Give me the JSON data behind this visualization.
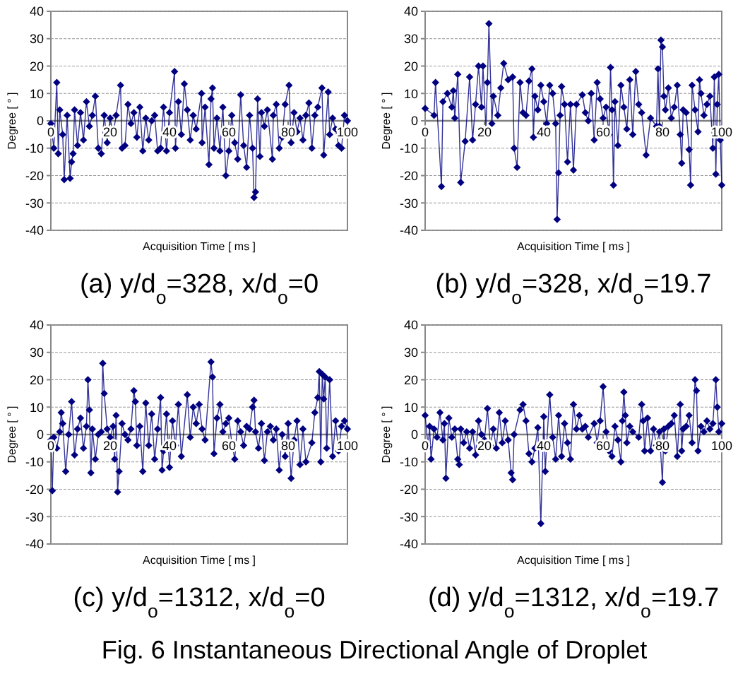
{
  "chart_data": [
    {
      "type": "line",
      "title": "(a) y/d$_{o}$=328, x/d$_{o}$=0",
      "xlabel": "Acquisition Time [ ms ]",
      "ylabel": "Degree [ ° ]",
      "xlim": [
        0,
        100
      ],
      "xticks": [
        0,
        20,
        40,
        60,
        80,
        100
      ],
      "ylim": [
        -40,
        40
      ],
      "yticks": [
        -40,
        -30,
        -20,
        -10,
        0,
        10,
        20,
        30,
        40
      ],
      "grid": "y",
      "marker": "diamond",
      "line_style": "solid",
      "annotations": [
        "Fig. 6 Instantaneous Directional Angle of Droplet"
      ],
      "series": [
        {
          "color": "#000080",
          "x": [
            0,
            1,
            2,
            2.5,
            3,
            4,
            4.5,
            5.5,
            6.5,
            7,
            7.5,
            8,
            9,
            10,
            11,
            12,
            13,
            14,
            15,
            16,
            17,
            18,
            19,
            20,
            21,
            22,
            23.5,
            24,
            25,
            26,
            27,
            28,
            29,
            30,
            31,
            32,
            33,
            34,
            35,
            36,
            37,
            38,
            39,
            40,
            41.7,
            42,
            43,
            44,
            45,
            46,
            47,
            48,
            49,
            50.8,
            51,
            52,
            53.3,
            54,
            54.5,
            55,
            56,
            57,
            58,
            59,
            60,
            61,
            62,
            63,
            64,
            65,
            66,
            67,
            68,
            68.5,
            69,
            69.7,
            70.5,
            71,
            72,
            73,
            74.7,
            75,
            76,
            77,
            78,
            79,
            80.3,
            81,
            82,
            83,
            84,
            85,
            86,
            87,
            88,
            89,
            90,
            91.4,
            92,
            93.5,
            94,
            95,
            96,
            97,
            98,
            99,
            100
          ],
          "values": [
            -1,
            -10,
            14,
            -12,
            4,
            -5,
            -21.5,
            2,
            -21,
            -15,
            -12,
            4,
            -9,
            3,
            -7,
            7,
            -2,
            2,
            9,
            -10,
            -12,
            2,
            -8,
            1,
            -5,
            2,
            13,
            -10,
            -9,
            6,
            -1,
            3,
            -6,
            5,
            -11,
            1,
            -7,
            0,
            2,
            -11,
            -10,
            5,
            -11,
            3,
            18,
            -10,
            7,
            -5,
            13.5,
            4,
            -7,
            2,
            -3,
            10,
            -8,
            5,
            -16,
            8,
            12,
            -10,
            1,
            -11,
            5,
            -20,
            -11,
            2,
            -8,
            -14,
            9.5,
            -9,
            -17,
            2,
            -10,
            -28,
            -26,
            8,
            -13,
            3,
            -2,
            4,
            -14,
            2,
            6,
            -10,
            -6,
            6,
            13,
            -8,
            3,
            -4,
            1,
            -7,
            2,
            6.5,
            -10,
            2,
            5,
            12,
            -12.5,
            10.5,
            -5,
            1,
            -3,
            -9,
            -10,
            2,
            0
          ]
        }
      ]
    },
    {
      "type": "line",
      "title": "(b) y/d$_{o}$=328, x/d$_{o}$=19.7",
      "xlabel": "Acquisition Time [ ms ]",
      "ylabel": "Degree [ ° ]",
      "xlim": [
        0,
        100
      ],
      "xticks": [
        0,
        20,
        40,
        60,
        80,
        100
      ],
      "ylim": [
        -40,
        40
      ],
      "yticks": [
        -40,
        -30,
        -20,
        -10,
        0,
        10,
        20,
        30,
        40
      ],
      "grid": "y",
      "marker": "diamond",
      "line_style": "solid",
      "series": [
        {
          "color": "#000080",
          "x": [
            0,
            3,
            3.5,
            5.5,
            6,
            7.5,
            9,
            9.5,
            10,
            11,
            12,
            13.5,
            15,
            16,
            17,
            18,
            19,
            19.5,
            20.5,
            21,
            21.5,
            22.5,
            23,
            24.5,
            25.5,
            26.5,
            28,
            29.5,
            30,
            31,
            32,
            33,
            34,
            35,
            36,
            36.5,
            37,
            38,
            39,
            40,
            41,
            42,
            43,
            44,
            44.5,
            45,
            45.5,
            46,
            47,
            48,
            49,
            50,
            51,
            53,
            54,
            55,
            56,
            57,
            58,
            59,
            60,
            61,
            62,
            62.5,
            63,
            63.5,
            64,
            65,
            66,
            67,
            68,
            69,
            70,
            71,
            72,
            73,
            74.5,
            76,
            78,
            78.5,
            79,
            79.5,
            80,
            80.5,
            81,
            82,
            83,
            84,
            85,
            86,
            86.5,
            87,
            88,
            89,
            89.5,
            90,
            91,
            92,
            92.5,
            93,
            94,
            95,
            96,
            97,
            97.5,
            98,
            98.5,
            99,
            99.5,
            100
          ],
          "values": [
            4.5,
            2,
            14,
            -24,
            7,
            10,
            5,
            11,
            1,
            17,
            -22.5,
            -7.5,
            16,
            -7,
            6,
            20,
            5,
            20,
            -3,
            14,
            35.5,
            -1,
            9,
            2,
            12,
            21,
            15,
            16,
            -10,
            -17,
            14,
            3,
            2,
            14.5,
            19,
            -6,
            9,
            4,
            13,
            7,
            -1,
            13,
            10,
            -1,
            -36,
            -19,
            2,
            12.5,
            6,
            -15,
            6,
            -18,
            6,
            9.5,
            3,
            0,
            10,
            -7,
            14,
            8,
            1,
            5,
            -5,
            19.5,
            4,
            -23.5,
            7,
            -9,
            13,
            5,
            -3,
            15,
            -5,
            18,
            6,
            3,
            -12.5,
            1,
            -2,
            19,
            -2,
            29.5,
            27,
            9,
            4,
            12,
            1,
            5,
            13,
            -5,
            -15.5,
            4,
            3,
            -10.5,
            -23.5,
            13,
            4,
            -4,
            15,
            10,
            2,
            6,
            9,
            -10,
            16,
            -19.5,
            6,
            17,
            -7,
            -23.5
          ]
        }
      ]
    },
    {
      "type": "line",
      "title": "(c) y/d$_{o}$=1312, x/d$_{o}$=0",
      "xlabel": "Acquisition Time [ ms ]",
      "ylabel": "Degree [ ° ]",
      "xlim": [
        0,
        100
      ],
      "xticks": [
        0,
        20,
        40,
        60,
        80,
        100
      ],
      "ylim": [
        -40,
        40
      ],
      "yticks": [
        -40,
        -30,
        -20,
        -10,
        0,
        10,
        20,
        30,
        40
      ],
      "grid": "y",
      "marker": "diamond",
      "line_style": "solid",
      "series": [
        {
          "color": "#000080",
          "x": [
            0,
            0.5,
            1,
            2,
            3,
            3.5,
            4,
            5,
            6,
            7,
            8,
            9,
            10,
            11,
            12,
            12.5,
            13,
            13.5,
            14,
            15,
            16,
            17,
            17.5,
            18,
            19,
            20,
            21,
            21.5,
            22,
            22.5,
            23,
            24,
            25,
            26,
            27,
            28,
            28.5,
            29,
            30,
            31,
            32,
            33,
            34,
            35,
            36,
            37,
            37.5,
            38,
            39,
            40,
            41,
            42,
            43,
            44,
            46,
            47,
            48,
            49,
            50,
            51,
            52,
            54,
            54.5,
            55,
            56,
            57,
            58,
            59,
            60,
            61,
            62,
            63,
            64,
            65,
            66,
            67,
            68,
            68.5,
            69,
            70,
            71,
            72,
            73,
            74,
            75,
            76,
            77,
            78,
            79,
            80,
            81,
            82,
            83,
            84,
            85,
            86,
            88,
            89,
            90,
            90.5,
            91,
            91.5,
            92,
            92.5,
            93,
            94,
            95,
            96,
            97,
            98,
            99,
            100
          ],
          "values": [
            -2,
            -20.5,
            -1,
            -5,
            1,
            8,
            4,
            -13.5,
            0,
            12,
            -7.5,
            2,
            6,
            -5,
            3,
            20,
            9,
            -14,
            2,
            -9,
            0,
            1,
            26,
            15,
            2,
            -1,
            3,
            -9,
            7,
            -21,
            -13.5,
            4,
            0,
            -2,
            2,
            16,
            12,
            -4,
            3,
            -13.5,
            11.5,
            -4,
            7.5,
            -9,
            2,
            13.5,
            -13,
            -6,
            7.5,
            -12,
            5,
            -4,
            11,
            -8,
            14.5,
            -1,
            10,
            4,
            11,
            2,
            -2,
            26.5,
            21,
            -7,
            6,
            11,
            1,
            4,
            6,
            -3,
            -9,
            5,
            1,
            -4,
            3,
            2,
            10,
            12.5,
            1,
            -5,
            4,
            -9.5,
            1,
            3,
            -2,
            2,
            -13,
            0,
            -8,
            4,
            -16,
            -2,
            5,
            -11,
            2,
            -10,
            -3,
            8,
            13.5,
            23,
            -10,
            22,
            13,
            21,
            -5,
            20,
            -8,
            5,
            -6,
            3,
            5,
            2
          ]
        }
      ]
    },
    {
      "type": "line",
      "title": "(d) y/d$_{o}$=1312, x/d$_{o}$=19.7",
      "xlabel": "Acquisition Time [ ms ]",
      "ylabel": "Degree [ ° ]",
      "xlim": [
        0,
        100
      ],
      "xticks": [
        0,
        20,
        40,
        60,
        80,
        100
      ],
      "ylim": [
        -40,
        40
      ],
      "yticks": [
        -40,
        -30,
        -20,
        -10,
        0,
        10,
        20,
        30,
        40
      ],
      "grid": "y",
      "marker": "diamond",
      "line_style": "solid",
      "series": [
        {
          "color": "#000080",
          "x": [
            0,
            1,
            1.5,
            2,
            3,
            4,
            5,
            6,
            6.5,
            7,
            8,
            9,
            10,
            11,
            11.5,
            12,
            13,
            14,
            15,
            16,
            17,
            18,
            19,
            20,
            21,
            22,
            23,
            24,
            25,
            26,
            27,
            28,
            29,
            29.5,
            30,
            32,
            33,
            34,
            35,
            36,
            37,
            38,
            39,
            40,
            40.5,
            41,
            42,
            43,
            44,
            45,
            46,
            47,
            48,
            49,
            50,
            51,
            52,
            53,
            54,
            55,
            57,
            58,
            59,
            60,
            61,
            62,
            63,
            64,
            65,
            66,
            66.5,
            67,
            67.5,
            68,
            69,
            70,
            72,
            73,
            73.5,
            74,
            75,
            76,
            77,
            78,
            79,
            80,
            80.5,
            81,
            82,
            83,
            84,
            85,
            86,
            86.5,
            87,
            88,
            89,
            90,
            91,
            91.5,
            92,
            93,
            94,
            95,
            96,
            97,
            98,
            98.5,
            99,
            100
          ],
          "values": [
            7,
            -4.5,
            3,
            -9,
            2,
            -1,
            8,
            -2,
            4,
            -16,
            6,
            -1,
            2,
            -9,
            -11,
            2,
            -3,
            1,
            -5,
            1,
            -7.5,
            5,
            0,
            -2,
            9.5,
            -4,
            2,
            -5,
            8,
            -3,
            5,
            -2,
            -14,
            -16.5,
            0,
            9,
            11,
            5,
            -7,
            -10,
            -5,
            2.5,
            -32.5,
            6.5,
            -13.5,
            -3,
            14.5,
            -1,
            -9,
            7,
            -8,
            4,
            -3,
            -9,
            11,
            2,
            7,
            2,
            3,
            -1,
            4,
            -3,
            5,
            17.5,
            1,
            -6,
            -8,
            3,
            -2,
            -10,
            5,
            15.5,
            7,
            -3,
            3,
            1,
            -1,
            11,
            5,
            -6,
            6,
            -6,
            2,
            -4,
            1,
            -17.5,
            2,
            -6,
            3,
            4,
            7,
            -8,
            11,
            -6,
            2,
            3,
            7,
            -3,
            20,
            16,
            -6,
            3,
            1,
            5,
            2,
            4,
            20,
            10,
            1,
            4
          ]
        }
      ]
    }
  ]
}
